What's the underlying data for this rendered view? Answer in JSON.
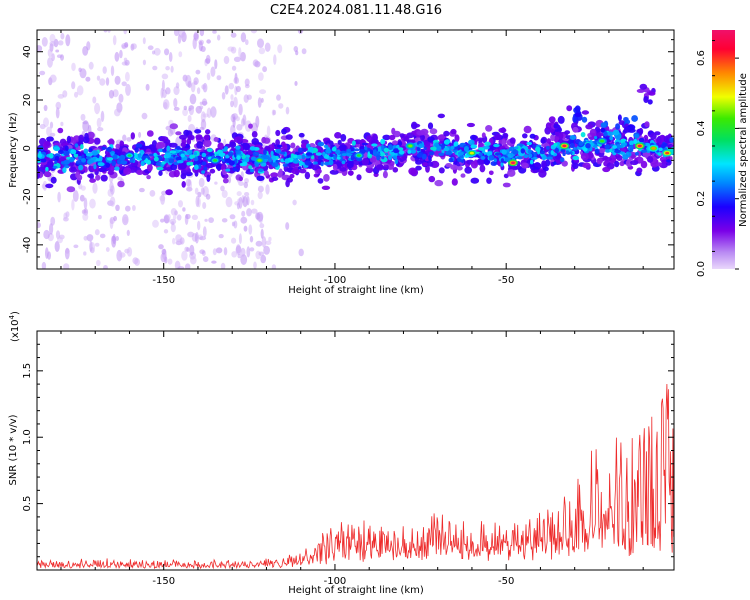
{
  "figure_title": "C2E4.2024.081.11.48.G16",
  "chart_data": [
    {
      "type": "heatmap",
      "title": "C2E4.2024.081.11.48.G16",
      "xlabel": "Height of straight line (km)",
      "ylabel": "Frequency (Hz)",
      "xlim": [
        -187,
        -1
      ],
      "ylim": [
        -50,
        49
      ],
      "x_ticks": [
        -150,
        -100,
        -50
      ],
      "x_tick_labels": [
        "-150",
        "-100",
        "-50"
      ],
      "y_ticks": [
        -40,
        -20,
        0,
        20,
        40
      ],
      "y_tick_labels": [
        "-40",
        "-20",
        "0",
        "20",
        "40"
      ],
      "colorbar": {
        "label": "Normalized spectral amplitude",
        "range": [
          0,
          0.68
        ],
        "ticks": [
          0.0,
          0.2,
          0.4,
          0.6
        ],
        "tick_labels": [
          "0.0",
          "0.2",
          "0.4",
          "0.6"
        ],
        "colors": [
          "#e9d7fb",
          "#7a00e8",
          "#0000ff",
          "#00e5ff",
          "#00e000",
          "#f0ff00",
          "#ff8800",
          "#ff0033",
          "#f0106a"
        ]
      },
      "band": {
        "x": [
          -187,
          -150,
          -110,
          -90,
          -70,
          -50,
          -30,
          -10,
          -1
        ],
        "center_hz": [
          -4,
          -4,
          -4,
          -2,
          0,
          -3,
          0,
          1,
          -1
        ],
        "half_width_hz": [
          6,
          6,
          6,
          5,
          6,
          6,
          6,
          6,
          5
        ]
      },
      "peaks": [
        {
          "x": -48,
          "y": -6,
          "amp": 0.68
        },
        {
          "x": -33,
          "y": 1,
          "amp": 0.66
        },
        {
          "x": -11,
          "y": 1,
          "amp": 0.66
        },
        {
          "x": -3,
          "y": -2,
          "amp": 0.6
        },
        {
          "x": -7,
          "y": 0,
          "amp": 0.55
        },
        {
          "x": -60,
          "y": -2,
          "amp": 0.5
        },
        {
          "x": -78,
          "y": 1,
          "amp": 0.45
        },
        {
          "x": -122,
          "y": -5,
          "amp": 0.45
        },
        {
          "x": -135,
          "y": -5,
          "amp": 0.4
        },
        {
          "x": -160,
          "y": -3,
          "amp": 0.38
        },
        {
          "x": -93,
          "y": -3,
          "amp": 0.4
        },
        {
          "x": -22,
          "y": 3,
          "amp": 0.42
        }
      ],
      "upper_branch": [
        {
          "x": -28,
          "y": 14,
          "amp": 0.2
        },
        {
          "x": -20,
          "y": 8,
          "amp": 0.25
        },
        {
          "x": -15,
          "y": 10,
          "amp": 0.2
        },
        {
          "x": -10,
          "y": 22,
          "amp": 0.15
        },
        {
          "x": -36,
          "y": 10,
          "amp": 0.15
        }
      ],
      "noise_columns_x": [
        -182,
        -172,
        -163,
        -148,
        -143,
        -138,
        -130,
        -127,
        -121
      ]
    },
    {
      "type": "line",
      "title": "",
      "xlabel": "Height of straight line (km)",
      "ylabel": "SNR (10 * v/v)",
      "y_multiplier_label": "(x10",
      "y_multiplier_exponent": "4",
      "y_multiplier_close": ")",
      "xlim": [
        -187,
        -1
      ],
      "ylim": [
        0,
        18000
      ],
      "x_ticks": [
        -150,
        -100,
        -50
      ],
      "x_tick_labels": [
        "-150",
        "-100",
        "-50"
      ],
      "y_ticks": [
        5000,
        10000,
        15000
      ],
      "y_tick_labels": [
        "0.5",
        "1.0",
        "1.5"
      ],
      "color": "#ee2b2b",
      "envelope": {
        "x": [
          -187,
          -165,
          -150,
          -125,
          -110,
          -100,
          -90,
          -75,
          -70,
          -60,
          -50,
          -42,
          -35,
          -28,
          -20,
          -12,
          -5,
          -2,
          -1
        ],
        "baseline": [
          300,
          300,
          300,
          300,
          500,
          1200,
          1500,
          1500,
          1500,
          1500,
          1500,
          1600,
          2000,
          2500,
          3000,
          2500,
          2000,
          2000,
          3000
        ],
        "peak": [
          700,
          900,
          800,
          700,
          1200,
          3500,
          3500,
          3500,
          4500,
          4000,
          3800,
          4200,
          6000,
          8000,
          10500,
          12500,
          14000,
          15000,
          18000
        ]
      }
    }
  ]
}
